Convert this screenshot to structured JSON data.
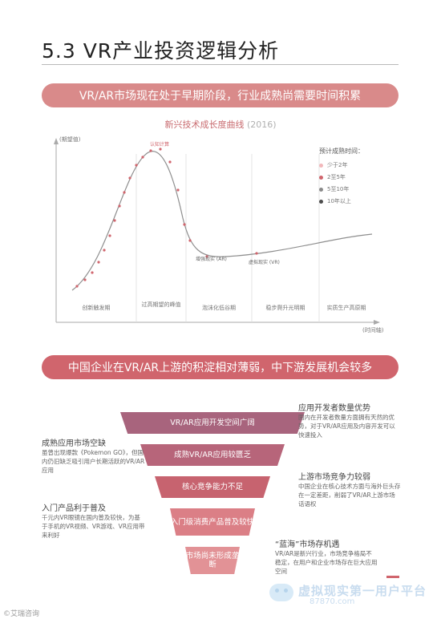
{
  "section_title": "5.3 VR产业投资逻辑分析",
  "banner_top": "VR/AR市场现在处于早期阶段，行业成熟尚需要时间积累",
  "chart": {
    "title": "新兴技术成长度曲线",
    "year": "(2016)",
    "y_axis_label": "(期望值)",
    "x_axis_label": "(时间轴)",
    "phases": [
      "创新触发期",
      "过高期望的峰值",
      "泡沫化低谷期",
      "稳步爬升光明期",
      "实质生产高原期"
    ],
    "legend_title": "预计成熟时间：",
    "legend": [
      {
        "label": "少于2年",
        "color": "#f2b8bb"
      },
      {
        "label": "2至5年",
        "color": "#d0656d"
      },
      {
        "label": "5至10年",
        "color": "#8a8a8a"
      },
      {
        "label": "10年以上",
        "color": "#4d4d4d"
      }
    ],
    "annotations": {
      "peak": "认知计算",
      "vr": "增强现实 (AR)",
      "ar": "虚拟现实 (VR)"
    }
  },
  "banner_bottom": "中国企业在VR/AR上游的积淀相对薄弱，中下游发展机会较多",
  "funnel": [
    {
      "label": "VR/AR应用开发空间广阔",
      "color": "#a8647d"
    },
    {
      "label": "成熟VR/AR应用较匮乏",
      "color": "#b7657a"
    },
    {
      "label": "核心竞争能力不足",
      "color": "#c7636f"
    },
    {
      "label": "入门级消费产品普及较快",
      "color": "#db7f86"
    },
    {
      "label": "市场尚未形成垄断",
      "color": "#e29296"
    }
  ],
  "notes_left": [
    {
      "head": "成熟应用市场空缺",
      "body": "虽曾出现爆款《Pokemon GO》，但国内仍旧缺乏吸引用户长期活跃的VR/AR应用"
    },
    {
      "head": "入门产品利于普及",
      "body": "千元内VR眼镜在国内普及较快，为基于手机的VR视频、VR游戏、VR应用带来利好"
    }
  ],
  "notes_right": [
    {
      "head": "应用开发者数量优势",
      "body": "国内在开发者数量方面拥有天然的优势，对于VR/AR应用及内容开发可以快速投入"
    },
    {
      "head": "上游市场竞争力较弱",
      "body": "中国企业在核心技术方面与海外巨头存在一定差距，削弱了VR/AR上游市场话语权"
    },
    {
      "head": "“蓝海”市场存机遇",
      "body": "VR/AR是新兴行业，市场竞争格局不稳定，在用户和企业市场存在巨大应用空间"
    }
  ],
  "watermark": {
    "line1": "虚拟现实第一用户平台",
    "line2": "87870.com"
  },
  "credit": "©艾瑞咨询"
}
